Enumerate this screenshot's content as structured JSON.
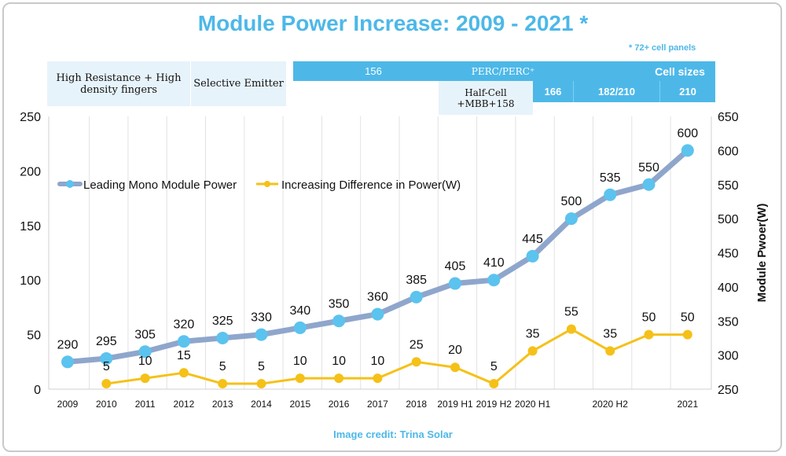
{
  "title": "Module Power Increase: 2009 - 2021 *",
  "note": "* 72+ cell panels",
  "credit": "Image credit: Trina Solar",
  "bands": {
    "high_resistance": "High Resistance + High density  fingers",
    "selective_emitter": "Selective Emitter",
    "size156": "156",
    "perc": "PERC/PERC⁺",
    "cell_sizes": "Cell sizes",
    "half_cell": "Half-Cell +MBB+158",
    "size166": "166",
    "size182": "182/210",
    "size210": "210"
  },
  "colors": {
    "accent": "#4db8e8",
    "power_line": "#8fa6cc",
    "power_marker": "#5bc3ee",
    "diff_line": "#f5c118"
  },
  "chart_data": {
    "type": "line",
    "categories": [
      "2009",
      "2010",
      "2011",
      "2012",
      "2013",
      "2014",
      "2015",
      "2016",
      "2017",
      "2018",
      "2019 H1",
      "2019 H2",
      "2020 H1",
      "",
      "2020 H2",
      "",
      "2021"
    ],
    "x_labels": [
      "2009",
      "2010",
      "2011",
      "2012",
      "2013",
      "2014",
      "2015",
      "2016",
      "2017",
      "2018",
      "2019 H1",
      "2019 H2",
      "2020 H1",
      "2020 H2",
      "2021"
    ],
    "series": [
      {
        "name": "Leading Mono Module Power",
        "axis": "right",
        "values": [
          290,
          295,
          305,
          320,
          325,
          330,
          340,
          350,
          360,
          385,
          405,
          410,
          445,
          500,
          535,
          550,
          600
        ]
      },
      {
        "name": "Increasing Difference in Power(W)",
        "axis": "left",
        "values": [
          null,
          5,
          10,
          15,
          5,
          5,
          10,
          10,
          10,
          25,
          20,
          5,
          35,
          55,
          35,
          50,
          50
        ]
      }
    ],
    "y_left": {
      "min": 0,
      "max": 250,
      "ticks": [
        0,
        50,
        100,
        150,
        200,
        250
      ]
    },
    "y_right": {
      "label": "Module Pwoer(W)",
      "min": 250,
      "max": 650,
      "ticks": [
        250,
        300,
        350,
        400,
        450,
        500,
        550,
        600,
        650
      ]
    },
    "grid": "vertical",
    "legend": "top-left"
  }
}
